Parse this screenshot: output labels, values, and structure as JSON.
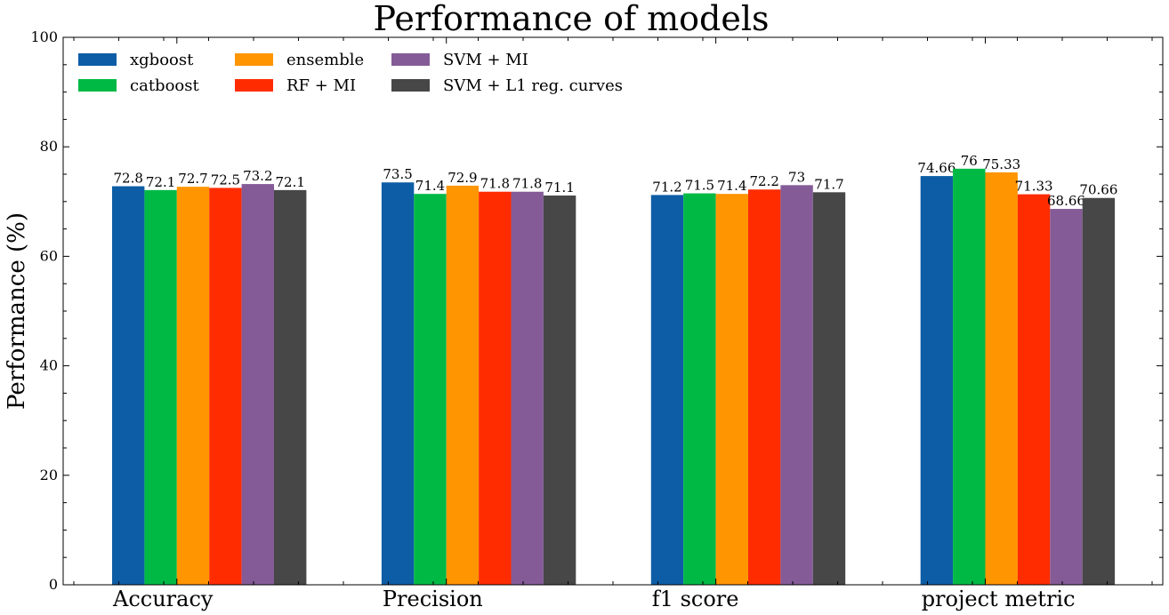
{
  "chart_data": {
    "type": "bar",
    "title": "Performance of models",
    "xlabel": "",
    "ylabel": "Performance (%)",
    "ylim": [
      0,
      100
    ],
    "yticks": [
      0,
      20,
      40,
      60,
      80,
      100
    ],
    "grid": false,
    "legend_position": "top-left",
    "categories": [
      "Accuracy",
      "Precision",
      "f1 score",
      "project metric"
    ],
    "series": [
      {
        "name": "xgboost",
        "color": "#0C5DA5",
        "values": [
          72.8,
          73.5,
          71.2,
          74.66
        ]
      },
      {
        "name": "catboost",
        "color": "#00B945",
        "values": [
          72.1,
          71.4,
          71.5,
          76
        ]
      },
      {
        "name": "ensemble",
        "color": "#FF9500",
        "values": [
          72.7,
          72.9,
          71.4,
          75.33
        ]
      },
      {
        "name": "RF + MI",
        "color": "#FF2C00",
        "values": [
          72.5,
          71.8,
          72.2,
          71.33
        ]
      },
      {
        "name": "SVM + MI",
        "color": "#845B97",
        "values": [
          73.2,
          71.8,
          73,
          68.66
        ]
      },
      {
        "name": "SVM + L1 reg. curves",
        "color": "#474747",
        "values": [
          72.1,
          71.1,
          71.7,
          70.66
        ]
      }
    ]
  }
}
